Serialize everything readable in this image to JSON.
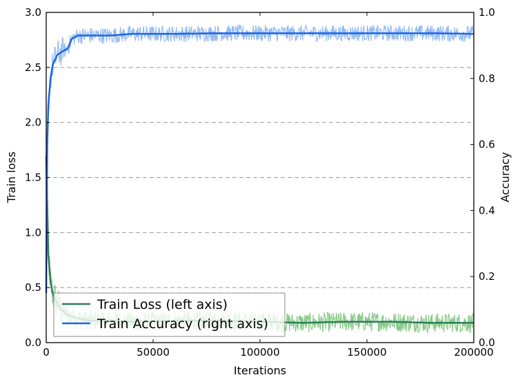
{
  "chart_data": {
    "type": "line",
    "xlabel": "Iterations",
    "ylabel_left": "Train loss",
    "ylabel_right": "Accuracy",
    "xlim": [
      0,
      200000
    ],
    "ylim_left": [
      0,
      3.0
    ],
    "ylim_right": [
      0,
      1.0
    ],
    "x_ticks": [
      0,
      50000,
      100000,
      150000,
      200000
    ],
    "x_tick_labels": [
      "0",
      "50000",
      "100000",
      "150000",
      "200000"
    ],
    "y_left_ticks": [
      0,
      0.5,
      1.0,
      1.5,
      2.0,
      2.5,
      3.0
    ],
    "y_left_tick_labels": [
      "0.0",
      "0.5",
      "1.0",
      "1.5",
      "2.0",
      "2.5",
      "3.0"
    ],
    "y_right_ticks": [
      0,
      0.2,
      0.4,
      0.6,
      0.8,
      1.0
    ],
    "y_right_tick_labels": [
      "0.0",
      "0.2",
      "0.4",
      "0.6",
      "0.8",
      "1.0"
    ],
    "grid": "horizontal dashed at left-axis ticks",
    "legend_position": "lower-left",
    "series": [
      {
        "name": "Train Loss (left axis)",
        "axis": "left",
        "color": "#2e7d5b",
        "raw_color": "#7cc47c",
        "x": [
          0,
          1000,
          2000,
          3000,
          5000,
          7000,
          10000,
          15000,
          20000,
          30000,
          40000,
          60000,
          80000,
          100000,
          120000,
          140000,
          160000,
          180000,
          200000
        ],
        "values": [
          1.7,
          0.8,
          0.55,
          0.45,
          0.36,
          0.3,
          0.25,
          0.22,
          0.2,
          0.2,
          0.19,
          0.2,
          0.2,
          0.19,
          0.18,
          0.19,
          0.19,
          0.18,
          0.18
        ]
      },
      {
        "name": "Train Accuracy (right axis)",
        "axis": "right",
        "color": "#1a66e6",
        "raw_color": "#8ab4f0",
        "x": [
          0,
          500,
          1000,
          2000,
          3000,
          5000,
          7000,
          10000,
          12000,
          15000,
          20000,
          30000,
          40000,
          60000,
          80000,
          100000,
          120000,
          140000,
          160000,
          180000,
          200000
        ],
        "values": [
          0.15,
          0.6,
          0.72,
          0.8,
          0.84,
          0.87,
          0.88,
          0.89,
          0.92,
          0.93,
          0.93,
          0.93,
          0.935,
          0.935,
          0.937,
          0.937,
          0.937,
          0.937,
          0.937,
          0.937,
          0.935
        ]
      }
    ]
  }
}
